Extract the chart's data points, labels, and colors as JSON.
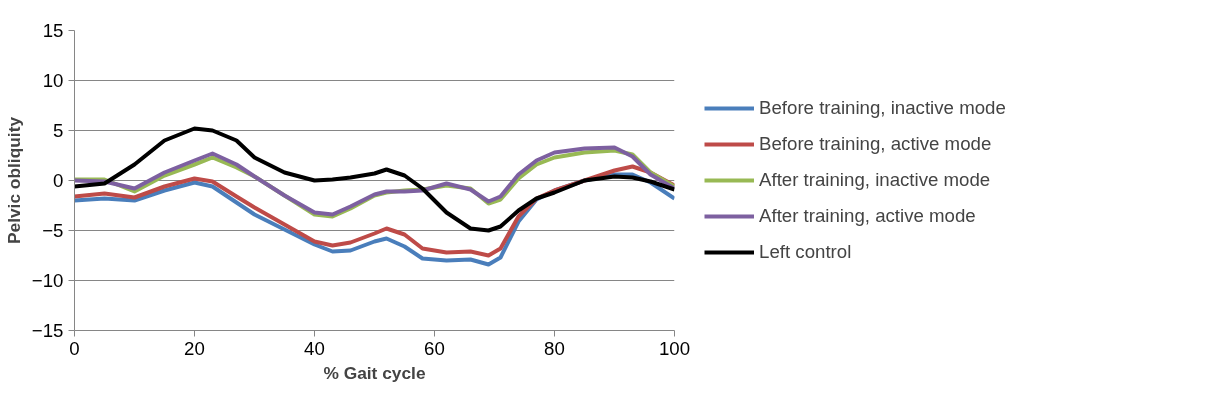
{
  "chart_data": {
    "type": "line",
    "xlabel": "% Gait cycle",
    "ylabel": "Pelvic obliquity",
    "xlim": [
      0,
      100
    ],
    "xticks": [
      0,
      20,
      40,
      60,
      80,
      100
    ],
    "ylim": [
      -15,
      15
    ],
    "yticks": [
      -15,
      -10,
      -5,
      0,
      5,
      10,
      15
    ],
    "grid": "y",
    "legend": "right",
    "marker": "none",
    "line_style": "solid",
    "x": [
      0,
      5,
      10,
      15,
      20,
      23,
      27,
      30,
      35,
      40,
      43,
      46,
      50,
      52,
      55,
      58,
      62,
      66,
      69,
      71,
      74,
      77,
      80,
      85,
      90,
      93,
      96,
      100
    ],
    "series": [
      {
        "name": "Before training, inactive mode",
        "color": "#4a7ebb",
        "values": [
          -2,
          -1.8,
          -2,
          -1,
          -0.2,
          -0.6,
          -2.2,
          -3.4,
          -4.9,
          -6.4,
          -7.1,
          -7,
          -6.1,
          -5.8,
          -6.6,
          -7.8,
          -8,
          -7.9,
          -8.4,
          -7.7,
          -4.1,
          -1.9,
          -1,
          0,
          0.6,
          0.6,
          -0.2,
          -1.8
        ]
      },
      {
        "name": "Before training, active mode",
        "color": "#be4b48",
        "values": [
          -1.6,
          -1.3,
          -1.7,
          -0.6,
          0.2,
          -0.1,
          -1.6,
          -2.7,
          -4.4,
          -6.1,
          -6.5,
          -6.2,
          -5.3,
          -4.8,
          -5.4,
          -6.8,
          -7.2,
          -7.1,
          -7.5,
          -6.8,
          -3.6,
          -1.8,
          -1,
          0,
          1,
          1.4,
          0.8,
          -0.5
        ]
      },
      {
        "name": "After training, inactive mode",
        "color": "#98b954",
        "values": [
          0.1,
          0.1,
          -1.1,
          0.5,
          1.6,
          2.3,
          1.3,
          0.4,
          -1.5,
          -3.4,
          -3.6,
          -2.8,
          -1.5,
          -1.2,
          -1.0,
          -0.9,
          -0.5,
          -0.8,
          -2.3,
          -1.9,
          0.2,
          1.6,
          2.3,
          2.8,
          3.0,
          2.6,
          0.8,
          -0.6
        ]
      },
      {
        "name": "After training, active mode",
        "color": "#7d60a0",
        "values": [
          0,
          -0.1,
          -0.8,
          0.8,
          2,
          2.7,
          1.6,
          0.4,
          -1.5,
          -3.2,
          -3.4,
          -2.6,
          -1.4,
          -1.1,
          -1.1,
          -1.0,
          -0.3,
          -0.9,
          -2.1,
          -1.6,
          0.6,
          2.0,
          2.8,
          3.2,
          3.3,
          2.4,
          0.6,
          -0.8
        ]
      },
      {
        "name": "Left control",
        "color": "#000000",
        "values": [
          -0.6,
          -0.3,
          1.6,
          4,
          5.2,
          5,
          4,
          2.3,
          0.8,
          0,
          0.1,
          0.3,
          0.7,
          1.1,
          0.5,
          -0.8,
          -3.2,
          -4.8,
          -5,
          -4.6,
          -3,
          -1.8,
          -1.2,
          0,
          0.4,
          0.3,
          -0.1,
          -0.9
        ]
      }
    ]
  }
}
